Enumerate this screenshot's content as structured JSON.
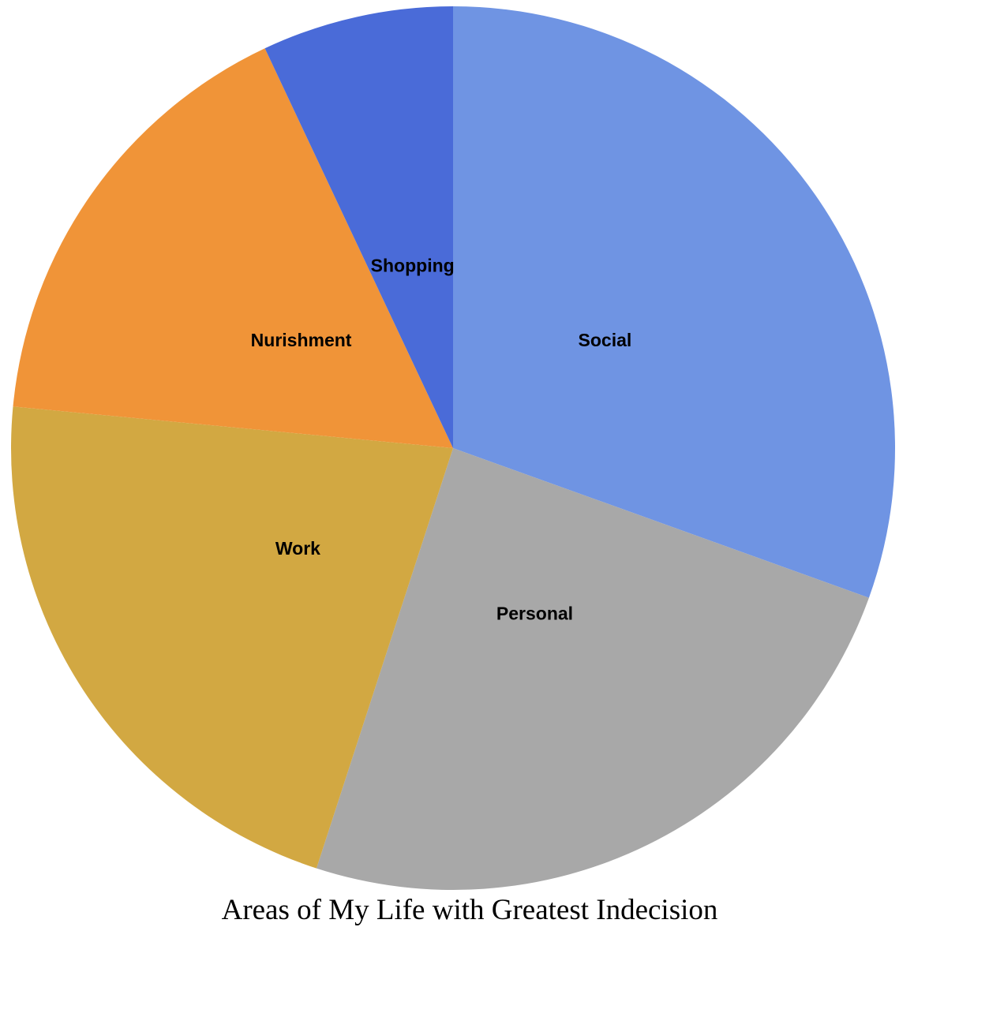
{
  "chart_data": {
    "type": "pie",
    "title": "Areas of My Life with Greatest Indecision",
    "start_angle": "12 o'clock",
    "direction": "clockwise",
    "slices": [
      {
        "label": "Social",
        "value": 30.5,
        "color": "#6f94e3"
      },
      {
        "label": "Personal",
        "value": 24.5,
        "color": "#a8a8a8"
      },
      {
        "label": "Work",
        "value": 21.5,
        "color": "#d2a842"
      },
      {
        "label": "Nurishment",
        "value": 16.5,
        "color": "#f09438"
      },
      {
        "label": "Shopping",
        "value": 7.0,
        "color": "#4a6bd8"
      }
    ]
  }
}
